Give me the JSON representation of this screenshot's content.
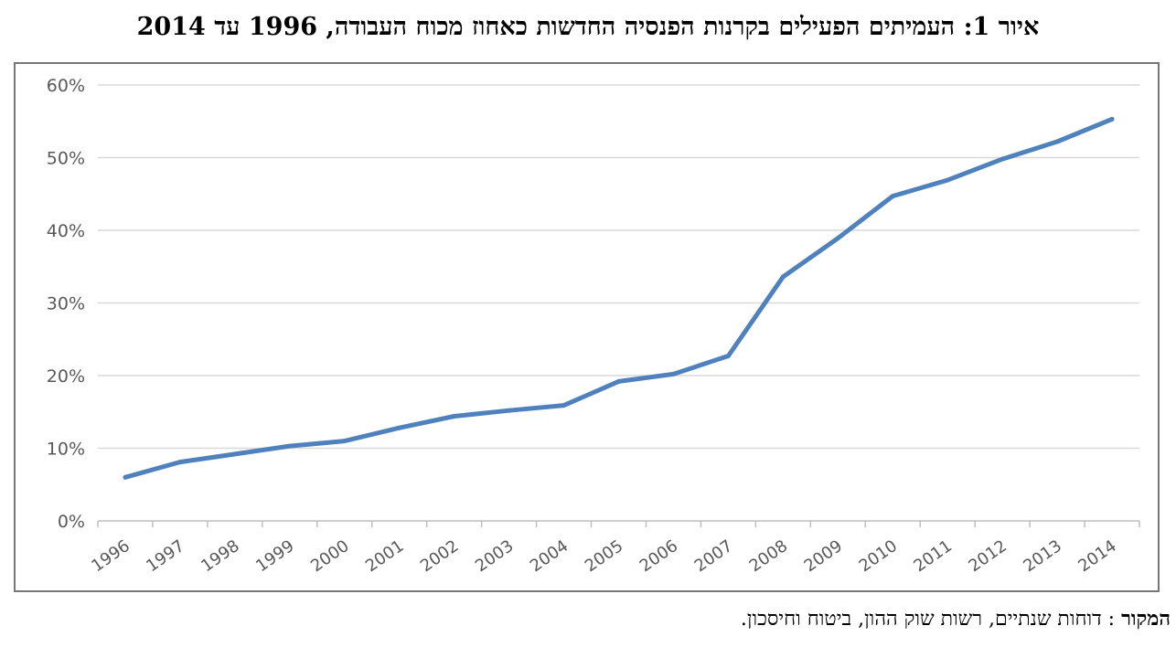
{
  "title": "איור 1: העמיתים הפעילים בקרנות הפנסיה החדשות כאחוז מכוח העבודה, 1996 עד 2014",
  "source": {
    "label": "המקור",
    "separator": " : ",
    "text": "דוחות שנתיים, רשות שוק ההון, ביטוח וחיסכון."
  },
  "chart_data": {
    "type": "line",
    "title": "איור 1: העמיתים הפעילים בקרנות הפנסיה החדשות כאחוז מכוח העבודה, 1996 עד 2014",
    "xlabel": "",
    "ylabel": "",
    "x": [
      "1996",
      "1997",
      "1998",
      "1999",
      "2000",
      "2001",
      "2002",
      "2003",
      "2004",
      "2005",
      "2006",
      "2007",
      "2008",
      "2009",
      "2010",
      "2011",
      "2012",
      "2013",
      "2014"
    ],
    "series": [
      {
        "values": [
          6.0,
          8.1,
          9.2,
          10.3,
          11.0,
          12.8,
          14.4,
          15.2,
          15.9,
          19.2,
          20.2,
          22.7,
          33.6,
          38.9,
          44.7,
          46.9,
          49.8,
          52.2,
          55.3
        ]
      }
    ],
    "ylim": [
      0,
      60
    ],
    "yticks": [
      0,
      10,
      20,
      30,
      40,
      50,
      60
    ],
    "ytick_labels": [
      "0%",
      "10%",
      "20%",
      "30%",
      "40%",
      "50%",
      "60%"
    ],
    "grid": "horizontal",
    "legend": "none",
    "line_color": "#4f81bd",
    "grid_color": "#d9d9d9",
    "axis_color": "#bfbfbf"
  }
}
